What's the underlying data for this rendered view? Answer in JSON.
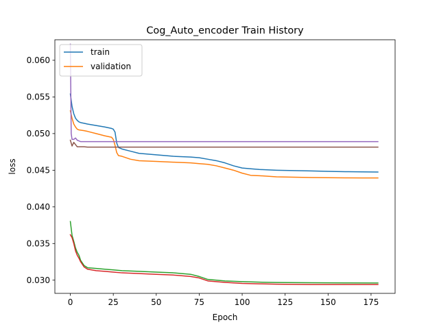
{
  "chart_data": {
    "type": "line",
    "title": "Cog_Auto_encoder Train History",
    "xlabel": "Epoch",
    "ylabel": "loss",
    "xlim": [
      -9,
      189
    ],
    "ylim": [
      0.0282,
      0.0628
    ],
    "xticks": [
      0,
      25,
      50,
      75,
      100,
      125,
      150,
      175
    ],
    "yticks": [
      0.03,
      0.035,
      0.04,
      0.045,
      0.05,
      0.055,
      0.06
    ],
    "ytick_labels": [
      "0.030",
      "0.035",
      "0.040",
      "0.045",
      "0.050",
      "0.055",
      "0.060"
    ],
    "grid": false,
    "legend": {
      "position": "top-left",
      "entries": [
        "train",
        "validation"
      ]
    },
    "series": [
      {
        "name": "train",
        "color": "#1f77b4",
        "x": [
          0,
          1,
          2,
          3,
          4,
          5,
          6,
          8,
          10,
          15,
          20,
          24,
          25,
          26,
          27,
          28,
          30,
          35,
          40,
          50,
          60,
          70,
          75,
          80,
          85,
          90,
          95,
          100,
          105,
          110,
          120,
          130,
          140,
          150,
          160,
          170,
          179
        ],
        "y": [
          0.0554,
          0.0537,
          0.0527,
          0.0521,
          0.0518,
          0.0516,
          0.0515,
          0.0514,
          0.0513,
          0.0511,
          0.0509,
          0.0507,
          0.0506,
          0.0502,
          0.0487,
          0.0481,
          0.0479,
          0.0476,
          0.0473,
          0.0471,
          0.0469,
          0.0468,
          0.0467,
          0.0465,
          0.0463,
          0.046,
          0.0456,
          0.0453,
          0.0452,
          0.0451,
          0.045,
          0.04495,
          0.0449,
          0.04485,
          0.0448,
          0.04478,
          0.04475
        ]
      },
      {
        "name": "validation",
        "color": "#ff7f0e",
        "x": [
          0,
          1,
          2,
          3,
          4,
          5,
          8,
          10,
          15,
          20,
          24,
          25,
          26,
          27,
          28,
          30,
          35,
          40,
          50,
          60,
          70,
          75,
          80,
          85,
          90,
          95,
          100,
          105,
          110,
          120,
          130,
          140,
          150,
          160,
          170,
          179
        ],
        "y": [
          0.0531,
          0.0521,
          0.0513,
          0.0509,
          0.0506,
          0.0505,
          0.0504,
          0.0503,
          0.05,
          0.0497,
          0.0495,
          0.0492,
          0.0484,
          0.0474,
          0.047,
          0.0469,
          0.0465,
          0.0463,
          0.0462,
          0.0461,
          0.046,
          0.0459,
          0.0458,
          0.0456,
          0.0453,
          0.045,
          0.0446,
          0.0443,
          0.04425,
          0.0441,
          0.04405,
          0.044,
          0.04398,
          0.04396,
          0.04395,
          0.04395
        ]
      },
      {
        "color": "#2ca02c",
        "x": [
          0,
          1,
          2,
          3,
          4,
          5,
          6,
          8,
          10,
          15,
          20,
          25,
          30,
          40,
          50,
          60,
          70,
          75,
          80,
          90,
          100,
          110,
          120,
          140,
          160,
          179
        ],
        "y": [
          0.038,
          0.0361,
          0.0353,
          0.0344,
          0.0338,
          0.0334,
          0.0327,
          0.032,
          0.0317,
          0.0316,
          0.0315,
          0.0314,
          0.0313,
          0.0312,
          0.0311,
          0.031,
          0.0308,
          0.0305,
          0.0301,
          0.0299,
          0.0298,
          0.02973,
          0.02968,
          0.02965,
          0.02963,
          0.02962
        ]
      },
      {
        "color": "#d62728",
        "x": [
          0,
          1,
          2,
          3,
          4,
          5,
          6,
          8,
          10,
          15,
          20,
          25,
          30,
          40,
          50,
          60,
          70,
          75,
          80,
          90,
          100,
          110,
          120,
          140,
          160,
          179
        ],
        "y": [
          0.0362,
          0.0358,
          0.035,
          0.034,
          0.0334,
          0.033,
          0.0325,
          0.0318,
          0.0315,
          0.0313,
          0.0312,
          0.0311,
          0.031,
          0.0309,
          0.0308,
          0.0307,
          0.0305,
          0.0303,
          0.0299,
          0.0297,
          0.02955,
          0.0295,
          0.02945,
          0.0294,
          0.0294,
          0.0294
        ]
      },
      {
        "color": "#9467bd",
        "x": [
          0,
          0.5,
          1,
          2,
          3,
          4,
          5,
          6,
          8,
          10,
          20,
          40,
          60,
          80,
          100,
          120,
          140,
          160,
          179
        ],
        "y": [
          0.0622,
          0.05,
          0.0492,
          0.0492,
          0.0494,
          0.0491,
          0.049,
          0.0489,
          0.0489,
          0.0489,
          0.0489,
          0.0489,
          0.0489,
          0.0489,
          0.0489,
          0.0489,
          0.0489,
          0.0489,
          0.0489
        ]
      },
      {
        "color": "#8c564b",
        "x": [
          0,
          1,
          2,
          3,
          4,
          5,
          6,
          8,
          10,
          20,
          40,
          60,
          80,
          100,
          120,
          140,
          160,
          179
        ],
        "y": [
          0.0491,
          0.0483,
          0.0488,
          0.0485,
          0.0482,
          0.0482,
          0.0482,
          0.0482,
          0.04815,
          0.04815,
          0.04815,
          0.04815,
          0.04815,
          0.04815,
          0.04815,
          0.04815,
          0.04815,
          0.04815
        ]
      }
    ]
  }
}
